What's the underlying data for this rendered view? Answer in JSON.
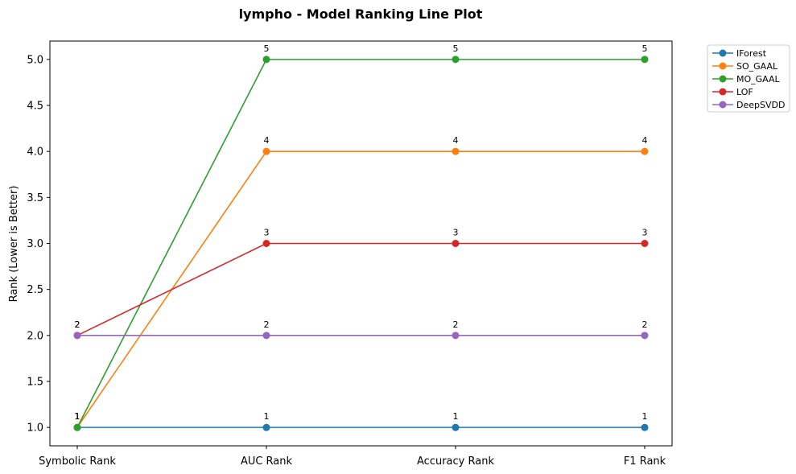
{
  "chart_data": {
    "type": "line",
    "title": "lympho - Model Ranking Line Plot",
    "xlabel": "",
    "ylabel": "Rank (Lower is Better)",
    "categories": [
      "Symbolic Rank",
      "AUC Rank",
      "Accuracy Rank",
      "F1 Rank"
    ],
    "ylim": [
      0.8,
      5.2
    ],
    "yticks": [
      1.0,
      1.5,
      2.0,
      2.5,
      3.0,
      3.5,
      4.0,
      4.5,
      5.0
    ],
    "ytick_labels": [
      "1.0",
      "1.5",
      "2.0",
      "2.5",
      "3.0",
      "3.5",
      "4.0",
      "4.5",
      "5.0"
    ],
    "grid": false,
    "legend_position": "outside-top-right",
    "data_labels": true,
    "series": [
      {
        "name": "IForest",
        "color": "#1f77b4",
        "values": [
          1,
          1,
          1,
          1
        ]
      },
      {
        "name": "SO_GAAL",
        "color": "#ff7f0e",
        "values": [
          1,
          4,
          4,
          4
        ]
      },
      {
        "name": "MO_GAAL",
        "color": "#2ca02c",
        "values": [
          1,
          5,
          5,
          5
        ]
      },
      {
        "name": "LOF",
        "color": "#d62728",
        "values": [
          2,
          3,
          3,
          3
        ]
      },
      {
        "name": "DeepSVDD",
        "color": "#9467bd",
        "values": [
          2,
          2,
          2,
          2
        ]
      }
    ]
  }
}
